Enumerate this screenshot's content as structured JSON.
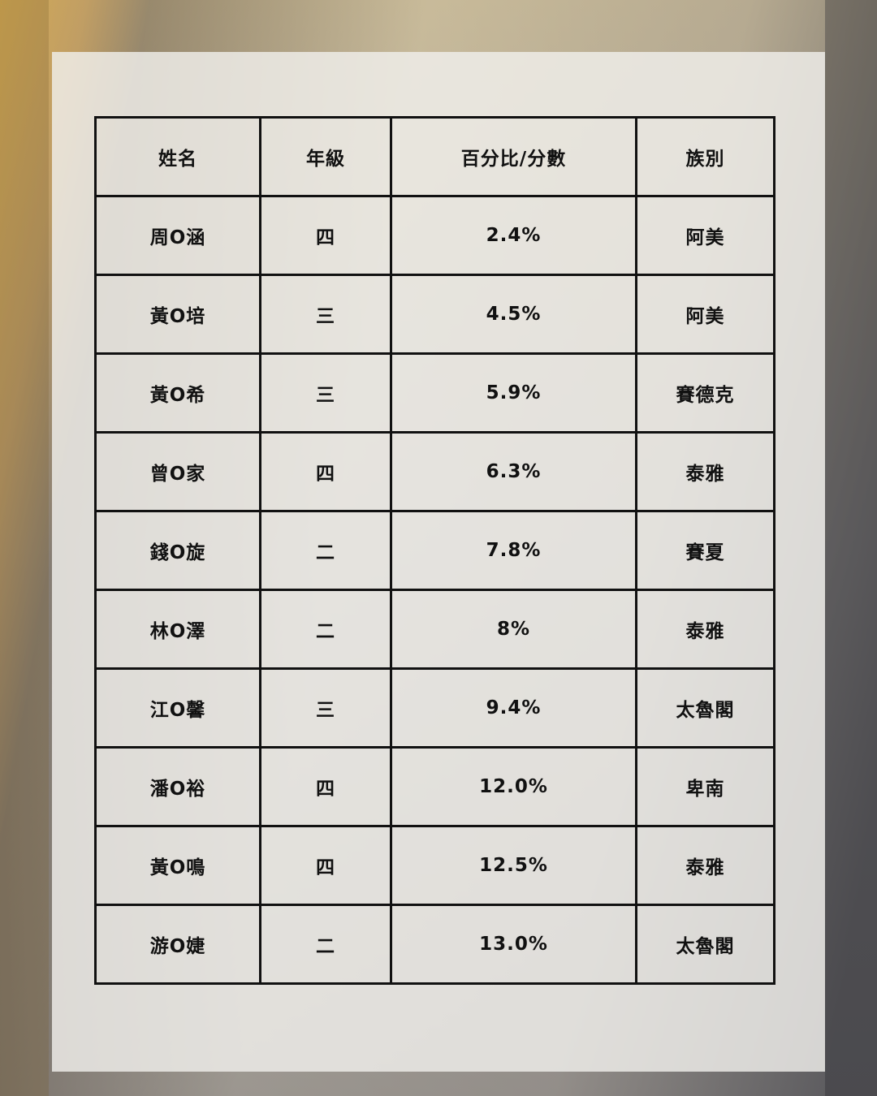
{
  "table": {
    "headers": [
      "姓名",
      "年級",
      "百分比/分數",
      "族別"
    ],
    "rows": [
      [
        "周O涵",
        "四",
        "2.4%",
        "阿美"
      ],
      [
        "黃O培",
        "三",
        "4.5%",
        "阿美"
      ],
      [
        "黃O希",
        "三",
        "5.9%",
        "賽德克"
      ],
      [
        "曾O家",
        "四",
        "6.3%",
        "泰雅"
      ],
      [
        "錢O旋",
        "二",
        "7.8%",
        "賽夏"
      ],
      [
        "林O澤",
        "二",
        "8%",
        "泰雅"
      ],
      [
        "江O馨",
        "三",
        "9.4%",
        "太魯閣"
      ],
      [
        "潘O裕",
        "四",
        "12.0%",
        "卑南"
      ],
      [
        "黃O鳴",
        "四",
        "12.5%",
        "泰雅"
      ],
      [
        "游O婕",
        "二",
        "13.0%",
        "太魯閣"
      ]
    ]
  }
}
